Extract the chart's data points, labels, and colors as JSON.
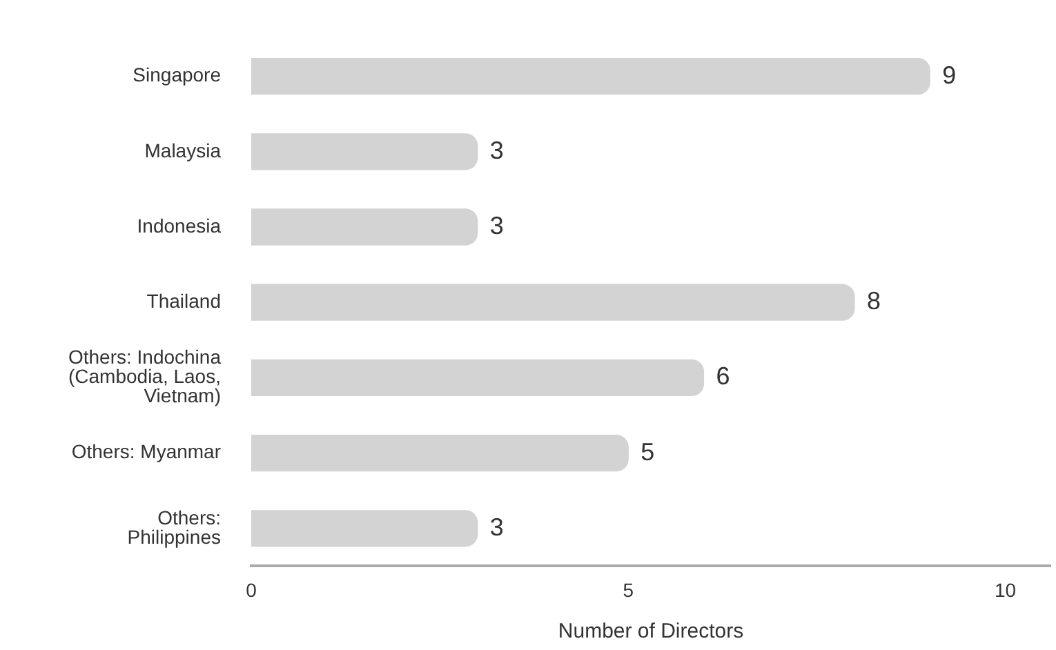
{
  "chart_data": {
    "type": "bar",
    "orientation": "horizontal",
    "xlabel": "Number of Directors",
    "categories": [
      "Singapore",
      "Malaysia",
      "Indonesia",
      "Thailand",
      "Others: Indochina\n(Cambodia, Laos,\nVietnam)",
      "Others: Myanmar",
      "Others:\nPhilippines"
    ],
    "values": [
      9,
      3,
      3,
      8,
      6,
      5,
      3
    ],
    "color": "#d3d3d3",
    "xlim": [
      0,
      10.6
    ],
    "xticks": [
      0,
      5,
      10
    ],
    "grid": false,
    "legend": false,
    "data_labels": true
  }
}
